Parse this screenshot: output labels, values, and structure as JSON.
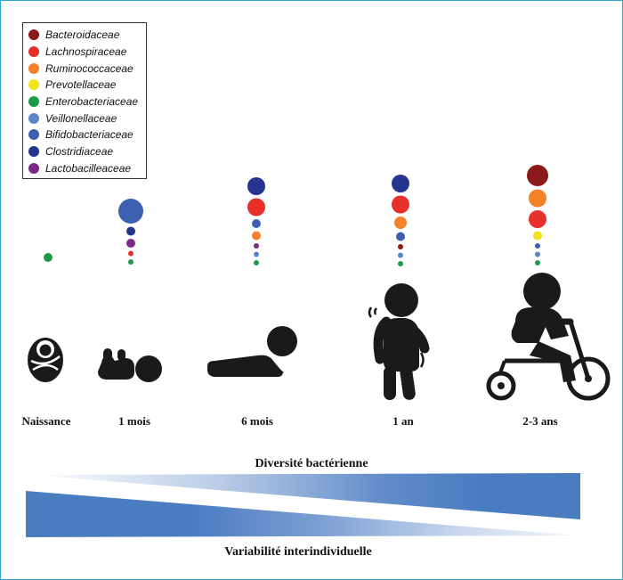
{
  "legend": [
    {
      "key": "bact",
      "label": "Bacteroidaceae",
      "color": "#8b1a1a"
    },
    {
      "key": "lach",
      "label": "Lachnospiraceae",
      "color": "#e8302a"
    },
    {
      "key": "rumi",
      "label": "Ruminococcaceae",
      "color": "#f5822a"
    },
    {
      "key": "prev",
      "label": "Prevotellaceae",
      "color": "#f2e21a"
    },
    {
      "key": "ente",
      "label": "Enterobacteriaceae",
      "color": "#1f9a4a"
    },
    {
      "key": "veil",
      "label": "Veillonellaceae",
      "color": "#5b86c8"
    },
    {
      "key": "bifi",
      "label": "Bifidobacteriaceae",
      "color": "#3d5fb0"
    },
    {
      "key": "clos",
      "label": "Clostridiaceae",
      "color": "#24348f"
    },
    {
      "key": "lact",
      "label": "Lactobacilleaceae",
      "color": "#7a2a86"
    }
  ],
  "stages": [
    {
      "label": "Naissance",
      "bubbles": [
        {
          "family": "ente",
          "size": 5
        }
      ]
    },
    {
      "label": "1 mois",
      "bubbles": [
        {
          "family": "bifi",
          "size": 14
        },
        {
          "family": "clos",
          "size": 5
        },
        {
          "family": "lact",
          "size": 5
        },
        {
          "family": "lach",
          "size": 3
        },
        {
          "family": "ente",
          "size": 3
        }
      ]
    },
    {
      "label": "6 mois",
      "bubbles": [
        {
          "family": "clos",
          "size": 10
        },
        {
          "family": "lach",
          "size": 10
        },
        {
          "family": "bifi",
          "size": 5
        },
        {
          "family": "rumi",
          "size": 5
        },
        {
          "family": "lact",
          "size": 3
        },
        {
          "family": "veil",
          "size": 3
        },
        {
          "family": "ente",
          "size": 3
        }
      ]
    },
    {
      "label": "1 an",
      "bubbles": [
        {
          "family": "clos",
          "size": 10
        },
        {
          "family": "lach",
          "size": 10
        },
        {
          "family": "rumi",
          "size": 7
        },
        {
          "family": "bifi",
          "size": 5
        },
        {
          "family": "bact",
          "size": 3
        },
        {
          "family": "veil",
          "size": 3
        },
        {
          "family": "ente",
          "size": 3
        }
      ]
    },
    {
      "label": "2-3 ans",
      "bubbles": [
        {
          "family": "bact",
          "size": 12
        },
        {
          "family": "rumi",
          "size": 10
        },
        {
          "family": "lach",
          "size": 10
        },
        {
          "family": "prev",
          "size": 5
        },
        {
          "family": "bifi",
          "size": 3
        },
        {
          "family": "veil",
          "size": 3
        },
        {
          "family": "ente",
          "size": 3
        }
      ]
    }
  ],
  "bars": {
    "diversity_label": "Diversité bactérienne",
    "variability_label": "Variabilité interindividuelle",
    "color": "#4a7cc0"
  }
}
